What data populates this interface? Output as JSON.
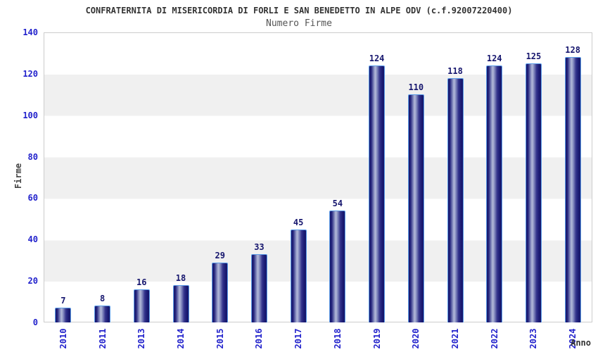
{
  "chart_data": {
    "type": "bar",
    "title": "CONFRATERNITA DI MISERICORDIA DI FORLI E SAN BENEDETTO IN ALPE ODV (c.f.92007220400)",
    "subtitle": "Numero Firme",
    "xlabel": "Anno",
    "ylabel": "Firme",
    "categories": [
      "2010",
      "2011",
      "2013",
      "2014",
      "2015",
      "2016",
      "2017",
      "2018",
      "2019",
      "2020",
      "2021",
      "2022",
      "2023",
      "2024"
    ],
    "values": [
      7,
      8,
      16,
      18,
      29,
      33,
      45,
      54,
      124,
      110,
      118,
      124,
      125,
      128
    ],
    "ylim": [
      0,
      140
    ],
    "ytick_step": 20,
    "ytick_labels": [
      "0",
      "20",
      "40",
      "60",
      "80",
      "100",
      "120",
      "140"
    ],
    "grid": "alternating-horizontal-bands",
    "legend_position": "none",
    "bar_labels_shown": true,
    "colors": {
      "bar_dark": "#17176b",
      "bar_light": "#b4bad9",
      "bar_border": "#5b9ce8",
      "tick_label": "#2222cc",
      "value_label": "#16166e",
      "title_text": "#333333",
      "subtitle_text": "#555555",
      "band_gray": "#f0f0f0",
      "plot_border": "#cccccc",
      "background": "#ffffff"
    }
  }
}
